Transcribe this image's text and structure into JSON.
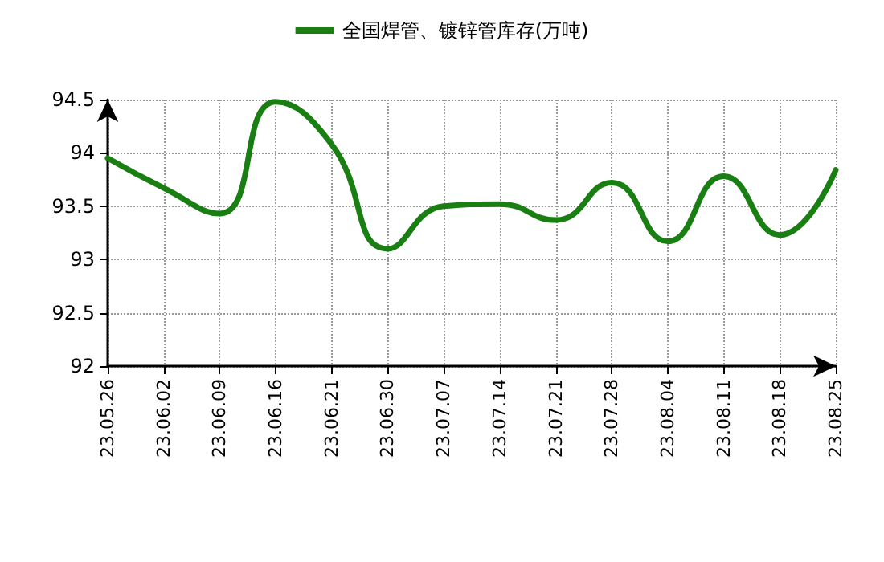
{
  "chart_data": {
    "type": "line",
    "categories": [
      "23.05.26",
      "23.06.02",
      "23.06.09",
      "23.06.16",
      "23.06.21",
      "23.06.30",
      "23.07.07",
      "23.07.14",
      "23.07.21",
      "23.07.28",
      "23.08.04",
      "23.08.11",
      "23.08.18",
      "23.08.25"
    ],
    "series": [
      {
        "name": "全国焊管、镀锌管库存(万吨)",
        "color": "#1a7f12",
        "values": [
          93.95,
          93.67,
          93.43,
          94.48,
          94.08,
          93.1,
          93.5,
          93.52,
          93.37,
          93.72,
          93.17,
          93.78,
          93.23,
          93.84
        ]
      }
    ],
    "ylim": [
      92,
      94.5
    ],
    "yticks": [
      92,
      92.5,
      93,
      93.5,
      94,
      94.5
    ],
    "grid": true,
    "legend": "top",
    "marker": "none",
    "line_style": "solid"
  }
}
